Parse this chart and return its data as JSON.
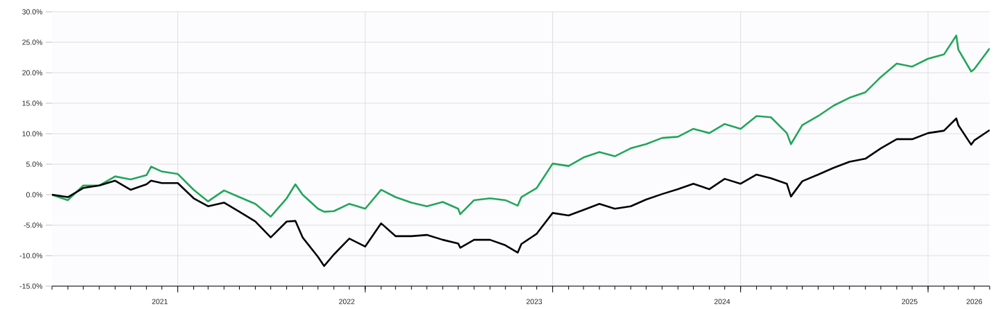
{
  "chart_data": {
    "type": "line",
    "x": [
      "2021-05-01",
      "2021-06-01",
      "2021-07-01",
      "2021-08-01",
      "2021-09-01",
      "2021-10-01",
      "2021-11-01",
      "2021-11-10",
      "2021-12-01",
      "2022-01-01",
      "2022-02-01",
      "2022-03-01",
      "2022-04-01",
      "2022-05-01",
      "2022-06-01",
      "2022-07-01",
      "2022-08-01",
      "2022-08-18",
      "2022-09-01",
      "2022-10-01",
      "2022-10-13",
      "2022-11-01",
      "2022-12-01",
      "2023-01-01",
      "2023-02-01",
      "2023-03-01",
      "2023-04-01",
      "2023-05-01",
      "2023-06-01",
      "2023-07-01",
      "2023-07-05",
      "2023-08-01",
      "2023-09-01",
      "2023-10-01",
      "2023-10-25",
      "2023-11-01",
      "2023-12-01",
      "2024-01-01",
      "2024-02-01",
      "2024-03-01",
      "2024-04-01",
      "2024-05-01",
      "2024-06-01",
      "2024-07-01",
      "2024-08-01",
      "2024-09-01",
      "2024-10-01",
      "2024-11-01",
      "2024-12-01",
      "2025-01-01",
      "2025-02-01",
      "2025-03-01",
      "2025-04-01",
      "2025-04-09",
      "2025-05-01",
      "2025-06-01",
      "2025-07-01",
      "2025-08-01",
      "2025-09-01",
      "2025-10-01",
      "2025-11-01",
      "2025-12-01",
      "2026-01-01",
      "2026-02-01",
      "2026-02-25",
      "2026-03-01",
      "2026-03-26",
      "2026-04-01",
      "2026-05-01"
    ],
    "series": [
      {
        "color": "#22a65a",
        "values": [
          0,
          -0.9,
          1.5,
          1.5,
          3.0,
          2.5,
          3.2,
          4.6,
          3.8,
          3.4,
          0.8,
          -1.1,
          0.7,
          -0.4,
          -1.5,
          -3.6,
          -0.6,
          1.7,
          0.0,
          -2.3,
          -2.8,
          -2.7,
          -1.5,
          -2.3,
          0.8,
          -0.4,
          -1.3,
          -1.9,
          -1.2,
          -2.3,
          -3.2,
          -0.9,
          -0.6,
          -0.9,
          -1.8,
          -0.4,
          1.1,
          5.1,
          4.7,
          6.1,
          7.0,
          6.3,
          7.6,
          8.3,
          9.3,
          9.5,
          10.8,
          10.1,
          11.6,
          10.8,
          12.9,
          12.7,
          10.1,
          8.3,
          11.4,
          12.9,
          14.6,
          15.9,
          16.8,
          19.3,
          21.5,
          21.0,
          22.3,
          23.0,
          26.1,
          23.8,
          20.2,
          20.6,
          24.0
        ]
      },
      {
        "color": "#000000",
        "values": [
          0,
          -0.4,
          1.1,
          1.5,
          2.3,
          0.8,
          1.7,
          2.3,
          1.9,
          1.9,
          -0.6,
          -1.9,
          -1.3,
          -2.8,
          -4.4,
          -7.0,
          -4.4,
          -4.3,
          -7.0,
          -10.2,
          -11.7,
          -9.8,
          -7.2,
          -8.5,
          -4.7,
          -6.8,
          -6.8,
          -6.6,
          -7.4,
          -8.0,
          -8.7,
          -7.4,
          -7.4,
          -8.3,
          -9.5,
          -8.1,
          -6.4,
          -3.0,
          -3.4,
          -2.5,
          -1.5,
          -2.3,
          -1.9,
          -0.8,
          0.1,
          0.9,
          1.8,
          0.9,
          2.6,
          1.8,
          3.3,
          2.7,
          1.8,
          -0.3,
          2.2,
          3.3,
          4.4,
          5.4,
          5.9,
          7.6,
          9.1,
          9.1,
          10.1,
          10.5,
          12.5,
          11.4,
          8.2,
          8.9,
          10.6
        ]
      }
    ],
    "xlim": [
      "2021-05-01",
      "2026-05-01"
    ],
    "xticks": [
      {
        "value": "2021-11-27",
        "label": "2021"
      },
      {
        "value": "2022-01-01",
        "label": null
      },
      {
        "value": "2022-11-26",
        "label": "2022"
      },
      {
        "value": "2023-01-01",
        "label": null
      },
      {
        "value": "2023-11-26",
        "label": "2023"
      },
      {
        "value": "2024-01-01",
        "label": null
      },
      {
        "value": "2024-11-26",
        "label": "2024"
      },
      {
        "value": "2025-01-01",
        "label": null
      },
      {
        "value": "2025-11-26",
        "label": "2025"
      },
      {
        "value": "2026-01-01",
        "label": null
      },
      {
        "value": "2026-04-01",
        "label": "2026"
      }
    ],
    "ylim": [
      -15,
      30
    ],
    "yticks": [
      {
        "value": -15,
        "label": "-15.0%"
      },
      {
        "value": -10,
        "label": "-10.0%"
      },
      {
        "value": -5,
        "label": "-5.0%"
      },
      {
        "value": 0,
        "label": "0.0%"
      },
      {
        "value": 5,
        "label": "5.0%"
      },
      {
        "value": 10,
        "label": "10.0%"
      },
      {
        "value": 15,
        "label": "15.0%"
      },
      {
        "value": 20,
        "label": "20.0%"
      },
      {
        "value": 25,
        "label": "25.0%"
      },
      {
        "value": 30,
        "label": "30.0%"
      }
    ],
    "grid": true
  }
}
